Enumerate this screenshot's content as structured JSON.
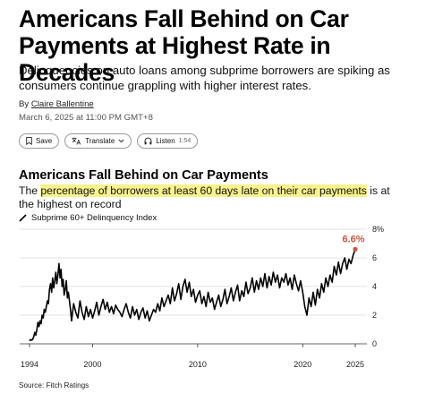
{
  "article": {
    "headline": "Americans Fall Behind on Car Payments at Highest Rate in Decades",
    "deck": "Delinquencies on auto loans among subprime borrowers are spiking as consumers continue grappling with higher interest rates.",
    "byline_prefix": "By ",
    "author": "Claire Ballentine",
    "date": "March 6, 2025 at 11:00 PM GMT+8"
  },
  "actions": {
    "save_label": "Save",
    "translate_label": "Translate",
    "listen_label": "Listen",
    "listen_duration": "1:54"
  },
  "icons": [
    "bookmark-icon",
    "translate-icon",
    "chevron-down-icon",
    "headphones-icon",
    "line-legend-icon"
  ],
  "colors": {
    "line": "#000000",
    "highlight": "#f7f28c",
    "annotation": "#c8553d"
  },
  "chart_data": {
    "type": "line",
    "title": "Americans Fall Behind on Car Payments",
    "subtitle_before": "The ",
    "subtitle_highlight": "percentage of borrowers at least 60 days late on their car payments",
    "subtitle_after": " is at the highest on record",
    "series": [
      {
        "name": "Subprime 60+ Delinquency Index",
        "x": [
          1994.0,
          1994.1,
          1994.2,
          1994.3,
          1994.4,
          1994.5,
          1994.6,
          1994.7,
          1994.8,
          1994.9,
          1995.0,
          1995.1,
          1995.2,
          1995.3,
          1995.4,
          1995.5,
          1995.6,
          1995.7,
          1995.8,
          1995.9,
          1996.0,
          1996.1,
          1996.2,
          1996.3,
          1996.4,
          1996.5,
          1996.6,
          1996.7,
          1996.8,
          1996.9,
          1997.0,
          1997.1,
          1997.2,
          1997.3,
          1997.4,
          1997.5,
          1997.6,
          1997.7,
          1997.8,
          1997.9,
          1998.0,
          1998.2,
          1998.4,
          1998.6,
          1998.8,
          1999.0,
          1999.2,
          1999.4,
          1999.6,
          1999.8,
          2000.0,
          2000.2,
          2000.4,
          2000.6,
          2000.8,
          2001.0,
          2001.2,
          2001.4,
          2001.6,
          2001.8,
          2002.0,
          2002.2,
          2002.4,
          2002.6,
          2002.8,
          2003.0,
          2003.2,
          2003.4,
          2003.6,
          2003.8,
          2004.0,
          2004.2,
          2004.4,
          2004.6,
          2004.8,
          2005.0,
          2005.2,
          2005.4,
          2005.6,
          2005.8,
          2006.0,
          2006.2,
          2006.4,
          2006.6,
          2006.8,
          2007.0,
          2007.2,
          2007.4,
          2007.6,
          2007.8,
          2008.0,
          2008.2,
          2008.4,
          2008.6,
          2008.8,
          2009.0,
          2009.2,
          2009.4,
          2009.6,
          2009.8,
          2010.0,
          2010.2,
          2010.4,
          2010.6,
          2010.8,
          2011.0,
          2011.2,
          2011.4,
          2011.6,
          2011.8,
          2012.0,
          2012.2,
          2012.4,
          2012.6,
          2012.8,
          2013.0,
          2013.2,
          2013.4,
          2013.6,
          2013.8,
          2014.0,
          2014.2,
          2014.4,
          2014.6,
          2014.8,
          2015.0,
          2015.2,
          2015.4,
          2015.6,
          2015.8,
          2016.0,
          2016.2,
          2016.4,
          2016.6,
          2016.8,
          2017.0,
          2017.2,
          2017.4,
          2017.6,
          2017.8,
          2018.0,
          2018.2,
          2018.4,
          2018.6,
          2018.8,
          2019.0,
          2019.2,
          2019.4,
          2019.6,
          2019.8,
          2020.0,
          2020.2,
          2020.4,
          2020.6,
          2020.8,
          2021.0,
          2021.2,
          2021.4,
          2021.6,
          2021.8,
          2022.0,
          2022.2,
          2022.4,
          2022.6,
          2022.8,
          2023.0,
          2023.2,
          2023.4,
          2023.6,
          2023.8,
          2024.0,
          2024.2,
          2024.4,
          2024.6,
          2024.8,
          2025.0
        ],
        "values": [
          0.2,
          0.3,
          0.25,
          0.3,
          0.5,
          0.8,
          0.6,
          1.0,
          1.5,
          1.2,
          1.6,
          1.4,
          2.0,
          1.8,
          2.4,
          2.2,
          2.6,
          3.0,
          2.8,
          3.8,
          4.2,
          3.6,
          4.6,
          3.9,
          4.4,
          5.0,
          4.2,
          4.8,
          5.6,
          4.6,
          5.2,
          4.0,
          4.5,
          3.4,
          3.8,
          4.4,
          3.2,
          3.6,
          3.0,
          2.4,
          1.6,
          2.8,
          2.2,
          1.8,
          3.0,
          2.2,
          1.7,
          2.6,
          1.9,
          2.4,
          1.8,
          2.3,
          2.9,
          2.0,
          2.6,
          3.1,
          2.4,
          2.9,
          2.2,
          2.6,
          2.1,
          2.7,
          2.4,
          2.2,
          1.9,
          2.4,
          2.8,
          2.2,
          1.8,
          2.6,
          2.0,
          2.4,
          1.7,
          2.2,
          2.5,
          1.8,
          2.3,
          1.6,
          2.0,
          2.4,
          2.2,
          2.8,
          2.3,
          3.2,
          2.6,
          3.0,
          3.4,
          2.8,
          3.9,
          3.0,
          3.5,
          4.2,
          3.1,
          4.0,
          4.5,
          3.6,
          4.3,
          3.3,
          3.8,
          2.9,
          3.4,
          3.7,
          2.8,
          3.3,
          2.6,
          3.6,
          2.9,
          3.2,
          2.4,
          2.9,
          3.4,
          2.6,
          3.1,
          3.8,
          2.8,
          3.3,
          3.9,
          3.0,
          3.6,
          4.1,
          3.0,
          3.7,
          3.3,
          4.3,
          3.5,
          3.9,
          4.6,
          3.6,
          4.4,
          3.8,
          4.6,
          4.0,
          4.9,
          3.9,
          4.7,
          4.1,
          5.0,
          4.3,
          4.8,
          3.9,
          4.6,
          4.3,
          4.9,
          4.1,
          4.6,
          3.8,
          4.8,
          4.2,
          3.7,
          4.4,
          3.6,
          2.6,
          2.0,
          3.2,
          2.6,
          3.6,
          2.7,
          3.8,
          3.2,
          4.2,
          3.6,
          4.6,
          4.0,
          4.8,
          4.3,
          5.4,
          4.8,
          5.7,
          4.9,
          5.6,
          6.0,
          5.2,
          5.9,
          5.6,
          6.2,
          6.6
        ]
      }
    ],
    "annotation": "6.6%",
    "yticks": [
      "0",
      "2",
      "4",
      "6",
      "8%"
    ],
    "xticks": [
      1994,
      2000,
      2010,
      2020,
      2025
    ],
    "ylim": [
      0,
      8
    ],
    "xlim": [
      1994,
      2025
    ],
    "grid": true,
    "source": "Source: Fitch Ratings"
  }
}
